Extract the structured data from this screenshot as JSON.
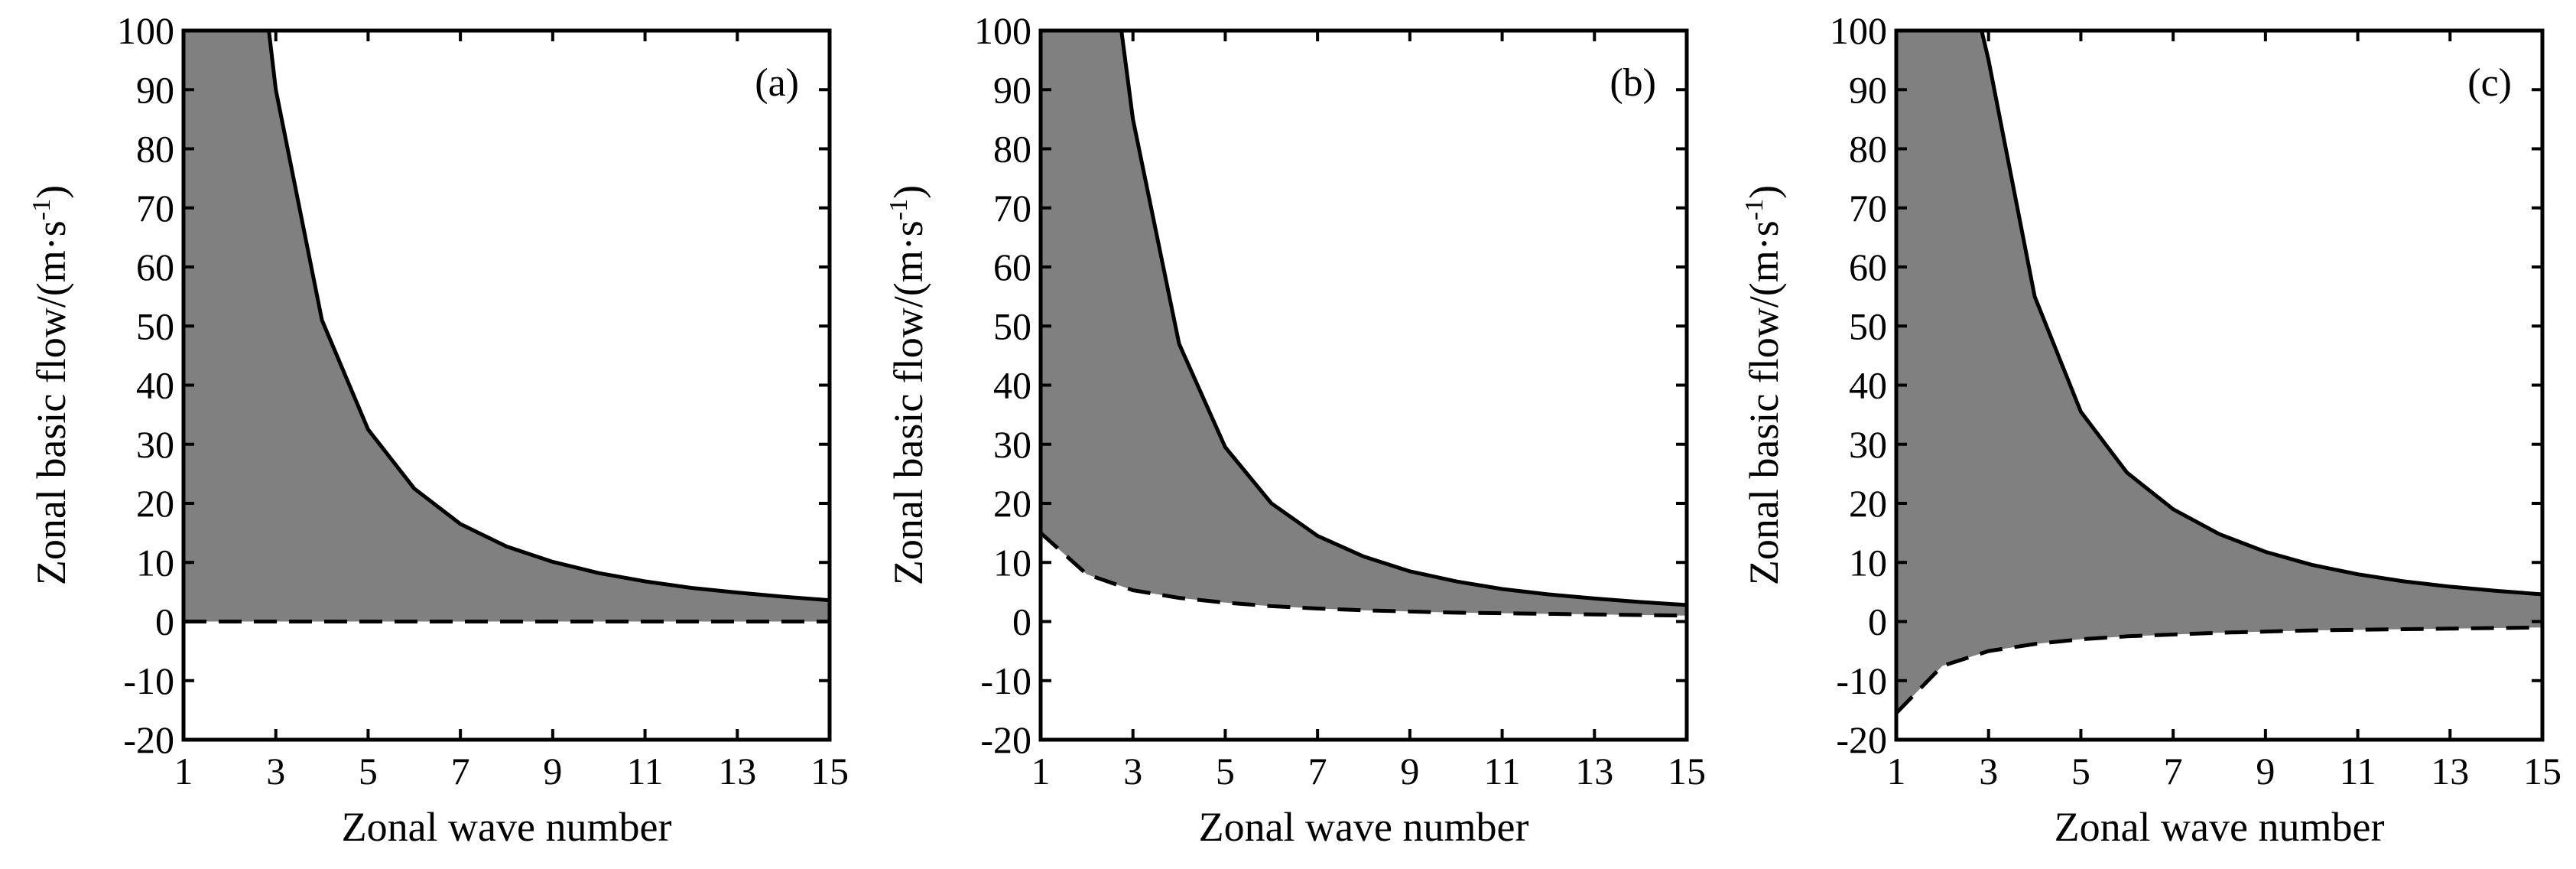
{
  "colors": {
    "fill": "#808080",
    "line": "#000000",
    "frame": "#000000",
    "background": "#ffffff"
  },
  "chart_data": [
    {
      "type": "area",
      "panel_label": "(a)",
      "xlabel": "Zonal wave number",
      "ylabel": "Zonal basic flow/(m·s",
      "ylabel_sup": "-1",
      "ylabel_tail": ")",
      "xlim": [
        1,
        15
      ],
      "ylim": [
        -20,
        100
      ],
      "xticks": [
        1,
        3,
        5,
        7,
        9,
        11,
        13,
        15
      ],
      "yticks": [
        -20,
        -10,
        0,
        10,
        20,
        30,
        40,
        50,
        60,
        70,
        80,
        90,
        100
      ],
      "grid": false,
      "series": [
        {
          "line_style": "solid",
          "x": [
            2.85,
            3,
            4,
            5,
            6,
            7,
            8,
            9,
            10,
            11,
            12,
            13,
            14,
            15
          ],
          "y": [
            100,
            90,
            51,
            32.5,
            22.5,
            16.5,
            12.7,
            10.1,
            8.2,
            6.8,
            5.7,
            4.9,
            4.2,
            3.6
          ]
        },
        {
          "line_style": "dashed",
          "x": [
            1,
            2,
            3,
            4,
            5,
            6,
            7,
            8,
            9,
            10,
            11,
            12,
            13,
            14,
            15
          ],
          "y": [
            0,
            0,
            0,
            0,
            0,
            0,
            0,
            0,
            0,
            0,
            0,
            0,
            0,
            0,
            0
          ]
        }
      ]
    },
    {
      "type": "area",
      "panel_label": "(b)",
      "xlabel": "Zonal wave number",
      "ylabel": "Zonal basic flow/(m·s",
      "ylabel_sup": "-1",
      "ylabel_tail": ")",
      "xlim": [
        1,
        15
      ],
      "ylim": [
        -20,
        100
      ],
      "xticks": [
        1,
        3,
        5,
        7,
        9,
        11,
        13,
        15
      ],
      "yticks": [
        -20,
        -10,
        0,
        10,
        20,
        30,
        40,
        50,
        60,
        70,
        80,
        90,
        100
      ],
      "grid": false,
      "series": [
        {
          "line_style": "solid",
          "x": [
            2.75,
            3,
            4,
            5,
            6,
            7,
            8,
            9,
            10,
            11,
            12,
            13,
            14,
            15
          ],
          "y": [
            100,
            85,
            47,
            29.5,
            20,
            14.5,
            11,
            8.5,
            6.8,
            5.5,
            4.6,
            3.9,
            3.3,
            2.8
          ]
        },
        {
          "line_style": "dashed",
          "x": [
            1,
            2,
            3,
            4,
            5,
            6,
            7,
            8,
            9,
            10,
            11,
            12,
            13,
            14,
            15
          ],
          "y": [
            15,
            8,
            5.3,
            4,
            3.2,
            2.6,
            2.2,
            1.9,
            1.7,
            1.5,
            1.4,
            1.3,
            1.2,
            1.1,
            1
          ]
        }
      ]
    },
    {
      "type": "area",
      "panel_label": "(c)",
      "xlabel": "Zonal wave number",
      "ylabel": "Zonal basic flow/(m·s",
      "ylabel_sup": "-1",
      "ylabel_tail": ")",
      "xlim": [
        1,
        15
      ],
      "ylim": [
        -20,
        100
      ],
      "xticks": [
        1,
        3,
        5,
        7,
        9,
        11,
        13,
        15
      ],
      "yticks": [
        -20,
        -10,
        0,
        10,
        20,
        30,
        40,
        50,
        60,
        70,
        80,
        90,
        100
      ],
      "grid": false,
      "series": [
        {
          "line_style": "solid",
          "x": [
            2.85,
            3,
            4,
            5,
            6,
            7,
            8,
            9,
            10,
            11,
            12,
            13,
            14,
            15
          ],
          "y": [
            100,
            95,
            55,
            35.5,
            25.2,
            19,
            14.8,
            11.8,
            9.6,
            8,
            6.8,
            5.9,
            5.2,
            4.6
          ]
        },
        {
          "line_style": "dashed",
          "x": [
            1,
            2,
            3,
            4,
            5,
            6,
            7,
            8,
            9,
            10,
            11,
            12,
            13,
            14,
            15
          ],
          "y": [
            -15.5,
            -7.5,
            -5,
            -3.8,
            -3,
            -2.5,
            -2.2,
            -1.9,
            -1.7,
            -1.5,
            -1.4,
            -1.3,
            -1.2,
            -1.1,
            -1
          ]
        }
      ]
    }
  ]
}
